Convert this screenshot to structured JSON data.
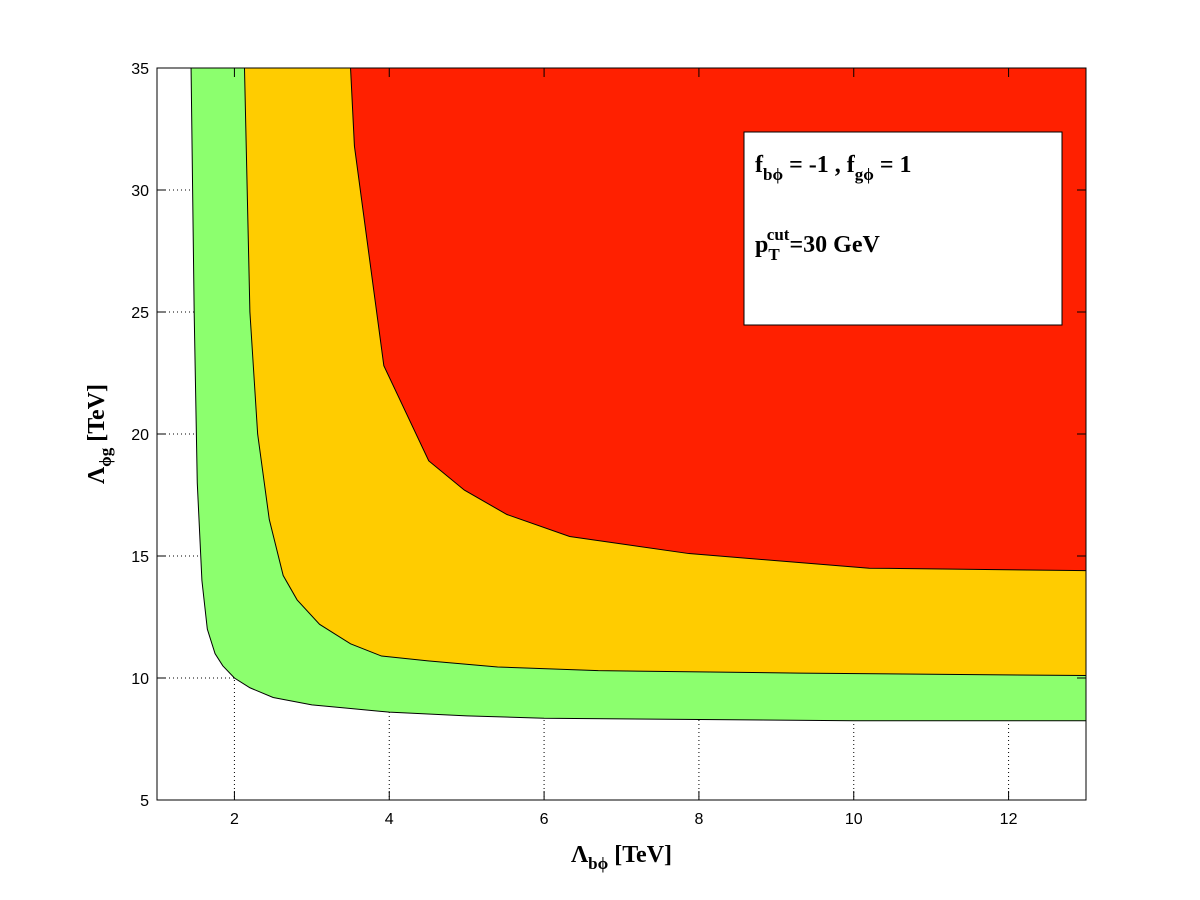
{
  "chart_data": {
    "type": "filled-contour",
    "xlim": [
      1,
      13
    ],
    "xticks": [
      2,
      4,
      6,
      8,
      10,
      12
    ],
    "ylim": [
      5,
      35
    ],
    "yticks": [
      5,
      10,
      15,
      20,
      25,
      30,
      35
    ],
    "grid": true,
    "xlabel": {
      "text": "Λ",
      "sub": "bϕ",
      "rest": " [TeV]"
    },
    "ylabel": {
      "text": "Λ",
      "sub": "ϕg",
      "rest": " [TeV]"
    },
    "annotations": [
      [
        {
          "text": "f"
        },
        {
          "sub": "bϕ"
        },
        {
          "text": " = -1 , f"
        },
        {
          "sub": "gϕ"
        },
        {
          "text": " = 1"
        }
      ],
      [
        {
          "text": "p"
        },
        {
          "sub": "T"
        },
        {
          "sup": "cut"
        },
        {
          "text": "=30 GeV"
        }
      ]
    ],
    "regions": [
      {
        "color": "#8cff6e",
        "x": [
          1.44,
          1.48,
          1.52,
          1.58,
          1.65,
          1.75,
          1.85,
          2,
          2.2,
          2.5,
          3,
          3.5,
          4,
          5,
          6,
          8,
          10,
          13
        ],
        "values": [
          35,
          25,
          18,
          14,
          12,
          11,
          10.5,
          10,
          9.6,
          9.2,
          8.9,
          8.75,
          8.6,
          8.45,
          8.35,
          8.3,
          8.25,
          8.25
        ]
      },
      {
        "color": "#ffcc00",
        "x": [
          2.13,
          2.2,
          2.3,
          2.45,
          2.63,
          2.81,
          3.1,
          3.5,
          3.9,
          4.5,
          5.4,
          6.7,
          9.3,
          13
        ],
        "values": [
          35,
          25,
          20,
          16.5,
          14.2,
          13.2,
          12.2,
          11.4,
          10.9,
          10.7,
          10.45,
          10.3,
          10.2,
          10.1
        ]
      },
      {
        "color": "#ff2000",
        "x": [
          3.5,
          3.55,
          3.93,
          4.51,
          4.97,
          5.52,
          6.33,
          7.87,
          10.2,
          13
        ],
        "values": [
          35,
          31.8,
          22.8,
          18.9,
          17.7,
          16.7,
          15.8,
          15.1,
          14.5,
          14.4
        ]
      }
    ]
  }
}
